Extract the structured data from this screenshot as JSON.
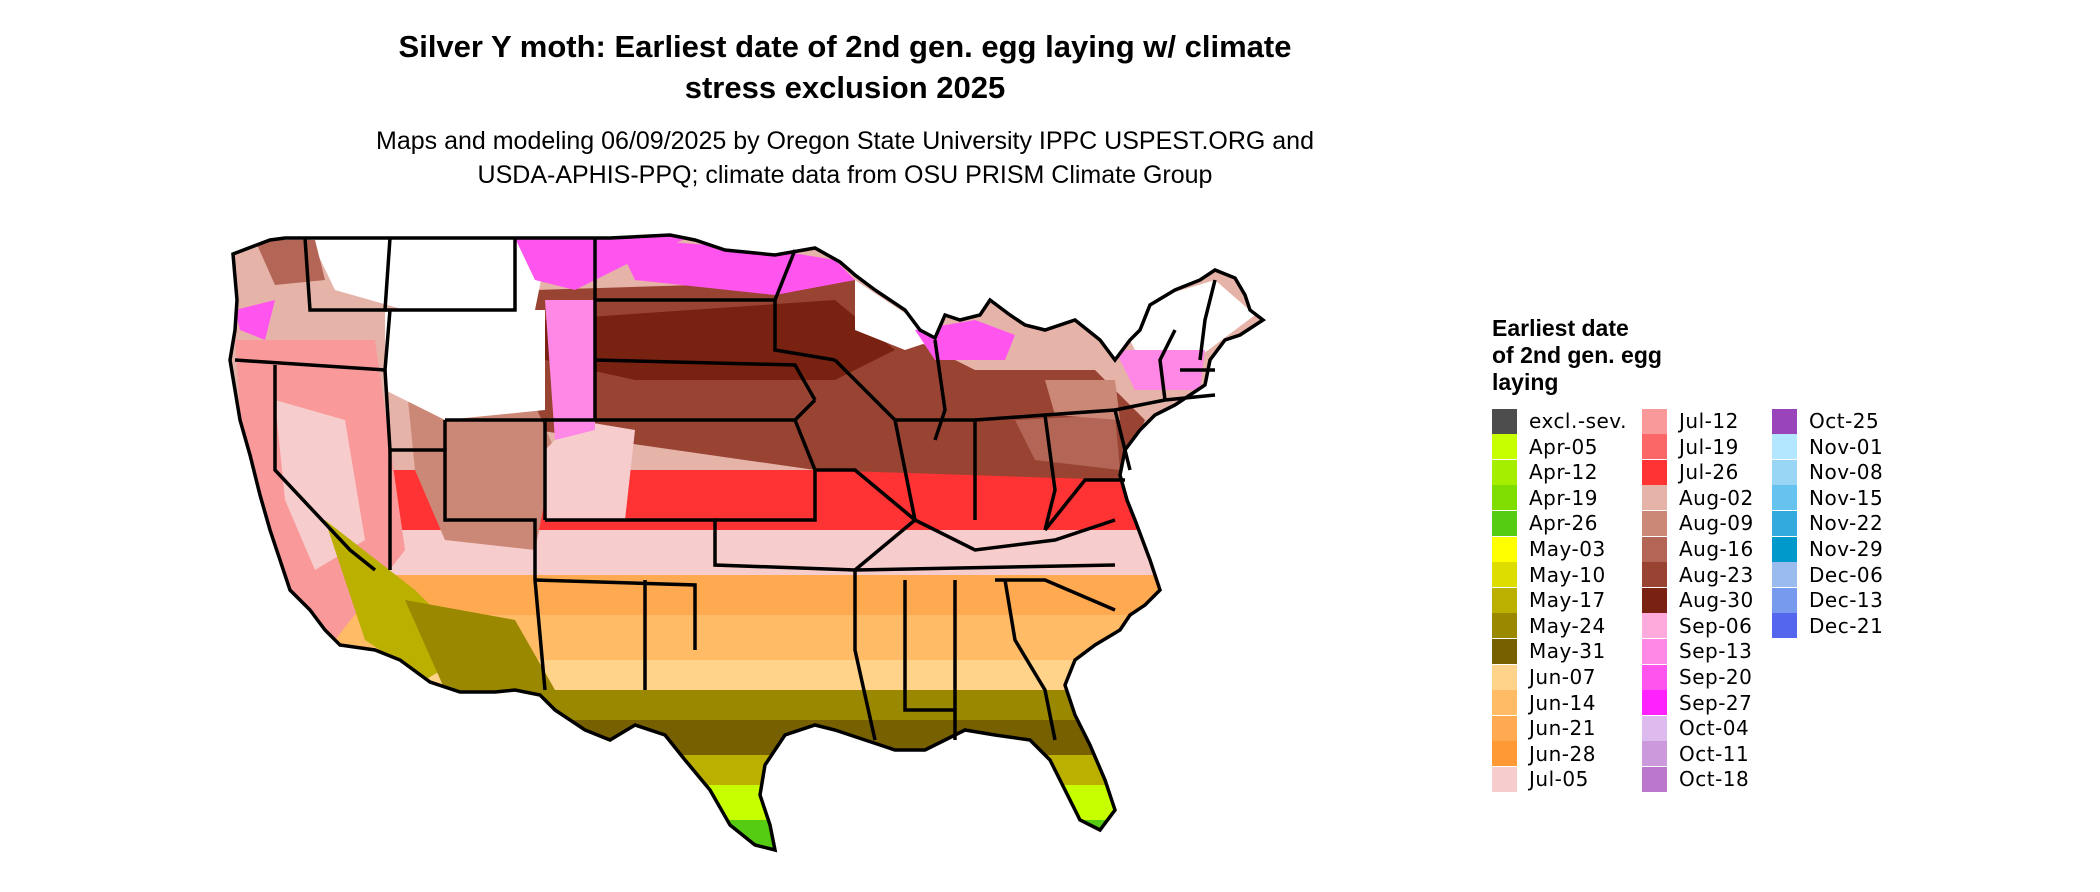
{
  "title_line1": "Silver Y moth: Earliest date of 2nd gen. egg laying w/ climate",
  "title_line2": "stress exclusion 2025",
  "subtitle_line1": "Maps and modeling 06/09/2025 by Oregon State University IPPC USPEST.ORG and",
  "subtitle_line2": "USDA-APHIS-PPQ; climate data from OSU PRISM Climate Group",
  "legend": {
    "title_line1": "Earliest date",
    "title_line2": "of 2nd gen. egg",
    "title_line3": "laying",
    "items": [
      {
        "label": "excl.-sev.",
        "color": "#4d4d4d"
      },
      {
        "label": "Apr-05",
        "color": "#c8ff00"
      },
      {
        "label": "Apr-12",
        "color": "#a6ee00"
      },
      {
        "label": "Apr-19",
        "color": "#80dd00"
      },
      {
        "label": "Apr-26",
        "color": "#55cc11"
      },
      {
        "label": "May-03",
        "color": "#ffff00"
      },
      {
        "label": "May-10",
        "color": "#dddd00"
      },
      {
        "label": "May-17",
        "color": "#bbb000"
      },
      {
        "label": "May-24",
        "color": "#998800"
      },
      {
        "label": "May-31",
        "color": "#776000"
      },
      {
        "label": "Jun-07",
        "color": "#ffd38a"
      },
      {
        "label": "Jun-14",
        "color": "#ffbb66"
      },
      {
        "label": "Jun-21",
        "color": "#ffaa50"
      },
      {
        "label": "Jun-28",
        "color": "#ff9933"
      },
      {
        "label": "Jul-05",
        "color": "#f7cccc"
      },
      {
        "label": "Jul-12",
        "color": "#f99999"
      },
      {
        "label": "Jul-19",
        "color": "#fb6666"
      },
      {
        "label": "Jul-26",
        "color": "#ff3333"
      },
      {
        "label": "Aug-02",
        "color": "#e6b3a8"
      },
      {
        "label": "Aug-09",
        "color": "#cc8877"
      },
      {
        "label": "Aug-16",
        "color": "#b36655"
      },
      {
        "label": "Aug-23",
        "color": "#994433"
      },
      {
        "label": "Aug-30",
        "color": "#7a2211"
      },
      {
        "label": "Sep-06",
        "color": "#ffaadd"
      },
      {
        "label": "Sep-13",
        "color": "#ff88e6"
      },
      {
        "label": "Sep-20",
        "color": "#ff55ee"
      },
      {
        "label": "Sep-27",
        "color": "#ff22ff"
      },
      {
        "label": "Oct-04",
        "color": "#ddbbee"
      },
      {
        "label": "Oct-11",
        "color": "#cc99dd"
      },
      {
        "label": "Oct-18",
        "color": "#bb77cc"
      },
      {
        "label": "Oct-25",
        "color": "#9944bb"
      },
      {
        "label": "Nov-01",
        "color": "#b3e6ff"
      },
      {
        "label": "Nov-08",
        "color": "#99d6f5"
      },
      {
        "label": "Nov-15",
        "color": "#66c2ee"
      },
      {
        "label": "Nov-22",
        "color": "#33aadd"
      },
      {
        "label": "Nov-29",
        "color": "#0099cc"
      },
      {
        "label": "Dec-06",
        "color": "#99bbee"
      },
      {
        "label": "Dec-13",
        "color": "#7799ee"
      },
      {
        "label": "Dec-21",
        "color": "#5566ee"
      }
    ]
  }
}
